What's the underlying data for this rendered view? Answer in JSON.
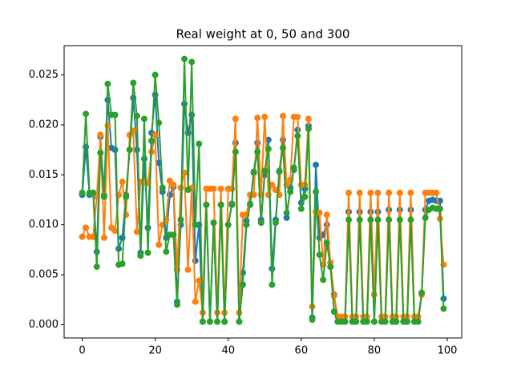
{
  "chart_data": {
    "type": "line",
    "title": "Real weight at 0, 50 and 300",
    "x": [
      0,
      1,
      2,
      3,
      4,
      5,
      6,
      7,
      8,
      9,
      10,
      11,
      12,
      13,
      14,
      15,
      16,
      17,
      18,
      19,
      20,
      21,
      22,
      23,
      24,
      25,
      26,
      27,
      28,
      29,
      30,
      31,
      32,
      33,
      34,
      35,
      36,
      37,
      38,
      39,
      40,
      41,
      42,
      43,
      44,
      45,
      46,
      47,
      48,
      49,
      50,
      51,
      52,
      53,
      54,
      55,
      56,
      57,
      58,
      59,
      60,
      61,
      62,
      63,
      64,
      65,
      66,
      67,
      68,
      69,
      70,
      71,
      72,
      73,
      74,
      75,
      76,
      77,
      78,
      79,
      80,
      81,
      82,
      83,
      84,
      85,
      86,
      87,
      88,
      89,
      90,
      91,
      92,
      93,
      94,
      95,
      96,
      97,
      98,
      99
    ],
    "series": [
      {
        "color": "#1f77b4",
        "values": [
          0.013,
          0.0178,
          0.013,
          0.0132,
          0.0073,
          0.0188,
          0.013,
          0.0225,
          0.0177,
          0.0175,
          0.0076,
          0.0087,
          0.013,
          0.0175,
          0.0227,
          0.0175,
          0.0072,
          0.0166,
          0.0097,
          0.0192,
          0.023,
          0.0162,
          0.0133,
          0.0087,
          0.013,
          0.0138,
          0.0023,
          0.01,
          0.0221,
          0.0192,
          0.021,
          0.0064,
          0.01,
          0.0003,
          0.012,
          0.0003,
          0.0102,
          0.0003,
          0.012,
          0.0003,
          0.01,
          0.012,
          0.0182,
          0.0003,
          0.0052,
          0.0104,
          0.012,
          0.0152,
          0.0182,
          0.0105,
          0.015,
          0.0185,
          0.0056,
          0.0105,
          0.0153,
          0.0185,
          0.0107,
          0.0137,
          0.0155,
          0.0195,
          0.0122,
          0.0136,
          0.0199,
          0.0007,
          0.016,
          0.0087,
          0.009,
          0.01,
          0.0058,
          0.003,
          0.0003,
          0.0003,
          0.0003,
          0.0113,
          0.0003,
          0.0003,
          0.0113,
          0.0003,
          0.0003,
          0.0113,
          0.0003,
          0.0113,
          0.0003,
          0.0003,
          0.0115,
          0.0003,
          0.0003,
          0.0115,
          0.0003,
          0.0003,
          0.0115,
          0.0003,
          0.0003,
          0.003,
          0.0115,
          0.0124,
          0.0125,
          0.0124,
          0.0124,
          0.0026
        ]
      },
      {
        "color": "#ff7f0e",
        "values": [
          0.0088,
          0.0097,
          0.0088,
          0.0088,
          0.0128,
          0.019,
          0.0087,
          0.0199,
          0.0097,
          0.0094,
          0.013,
          0.0143,
          0.011,
          0.019,
          0.0194,
          0.0093,
          0.0143,
          0.0143,
          0.0142,
          0.0173,
          0.019,
          0.008,
          0.01,
          0.0105,
          0.0144,
          0.014,
          0.0055,
          0.0137,
          0.0152,
          0.0055,
          0.0137,
          0.0023,
          0.0044,
          0.0012,
          0.0136,
          0.0136,
          0.0136,
          0.0012,
          0.0136,
          0.0012,
          0.0136,
          0.0136,
          0.0206,
          0.0012,
          0.011,
          0.011,
          0.013,
          0.013,
          0.0207,
          0.013,
          0.0208,
          0.013,
          0.014,
          0.0135,
          0.013,
          0.0209,
          0.014,
          0.0145,
          0.0208,
          0.0208,
          0.014,
          0.014,
          0.0206,
          0.0018,
          0.0113,
          0.0112,
          0.006,
          0.011,
          0.0062,
          0.0029,
          0.0008,
          0.0008,
          0.0008,
          0.0132,
          0.0008,
          0.0008,
          0.0132,
          0.0008,
          0.0008,
          0.0132,
          0.003,
          0.0132,
          0.0008,
          0.0008,
          0.0132,
          0.0008,
          0.0008,
          0.0132,
          0.0008,
          0.0008,
          0.0132,
          0.0008,
          0.0008,
          0.003,
          0.0132,
          0.0132,
          0.0132,
          0.0132,
          0.0106,
          0.006
        ]
      },
      {
        "color": "#2ca02c",
        "values": [
          0.0132,
          0.0211,
          0.0132,
          0.0132,
          0.0058,
          0.0172,
          0.0128,
          0.0241,
          0.021,
          0.021,
          0.006,
          0.0061,
          0.0128,
          0.0175,
          0.0242,
          0.0209,
          0.0069,
          0.0206,
          0.0072,
          0.0184,
          0.025,
          0.0202,
          0.0137,
          0.0073,
          0.009,
          0.009,
          0.002,
          0.0105,
          0.0266,
          0.0135,
          0.0263,
          0.01,
          0.0181,
          0.0003,
          0.012,
          0.0003,
          0.0102,
          0.0003,
          0.012,
          0.0003,
          0.01,
          0.0121,
          0.0173,
          0.0003,
          0.004,
          0.01,
          0.0121,
          0.0153,
          0.0173,
          0.0102,
          0.0154,
          0.0176,
          0.004,
          0.0102,
          0.0154,
          0.0177,
          0.0112,
          0.0133,
          0.0157,
          0.0189,
          0.0116,
          0.0128,
          0.0196,
          0.0005,
          0.0133,
          0.007,
          0.0045,
          0.0082,
          0.0058,
          0.0013,
          0.0003,
          0.0003,
          0.0003,
          0.0105,
          0.0003,
          0.0003,
          0.0105,
          0.0003,
          0.0003,
          0.0105,
          0.0003,
          0.0105,
          0.0003,
          0.0003,
          0.0105,
          0.0003,
          0.0003,
          0.0105,
          0.0003,
          0.0003,
          0.0105,
          0.0003,
          0.0003,
          0.0032,
          0.0107,
          0.0115,
          0.0117,
          0.0116,
          0.0116,
          0.0016
        ]
      }
    ],
    "xlim": [
      -4.95,
      103.95
    ],
    "xticks": [
      0,
      20,
      40,
      60,
      80,
      100
    ],
    "ylim": [
      -0.00133,
      0.02793
    ],
    "yticks": [
      {
        "value": 0,
        "label": "0.000"
      },
      {
        "value": 0.005,
        "label": "0.005"
      },
      {
        "value": 0.01,
        "label": "0.010"
      },
      {
        "value": 0.015,
        "label": "0.015"
      },
      {
        "value": 0.02,
        "label": "0.020"
      },
      {
        "value": 0.025,
        "label": "0.025"
      }
    ],
    "grid": false
  }
}
